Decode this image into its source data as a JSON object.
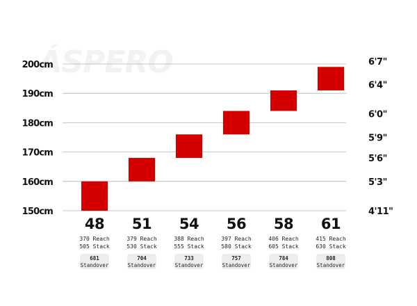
{
  "chart_data": {
    "type": "bar",
    "title": "ÁSPERO",
    "xlabel": "",
    "ylabel": "",
    "ylim": [
      150,
      200
    ],
    "grid": true,
    "left_axis_ticks": [
      "150cm",
      "160cm",
      "170cm",
      "180cm",
      "190cm",
      "200cm"
    ],
    "left_axis_values": [
      150,
      160,
      170,
      180,
      190,
      200
    ],
    "right_axis_ticks": [
      "4'11\"",
      "5'3\"",
      "5'6\"",
      "5'9\"",
      "6'0\"",
      "6'4\"",
      "6'7\""
    ],
    "right_axis_values": [
      150,
      160,
      168,
      175,
      183,
      193,
      201
    ],
    "categories": [
      "48",
      "51",
      "54",
      "56",
      "58",
      "61"
    ],
    "rider_height_ranges_cm": [
      [
        150,
        160
      ],
      [
        160,
        168
      ],
      [
        168,
        176
      ],
      [
        176,
        184
      ],
      [
        184,
        191
      ],
      [
        191,
        199
      ]
    ],
    "reach": [
      "370 Reach",
      "379 Reach",
      "388 Reach",
      "397 Reach",
      "406 Reach",
      "415 Reach"
    ],
    "stack": [
      "505 Stack",
      "530 Stack",
      "555 Stack",
      "580 Stack",
      "605 Stack",
      "630 Stack"
    ],
    "standover": [
      "681",
      "704",
      "733",
      "757",
      "784",
      "808"
    ],
    "standover_label": "Standover",
    "bar_color": "#d40000",
    "grid_color": "#b5b5b5"
  }
}
